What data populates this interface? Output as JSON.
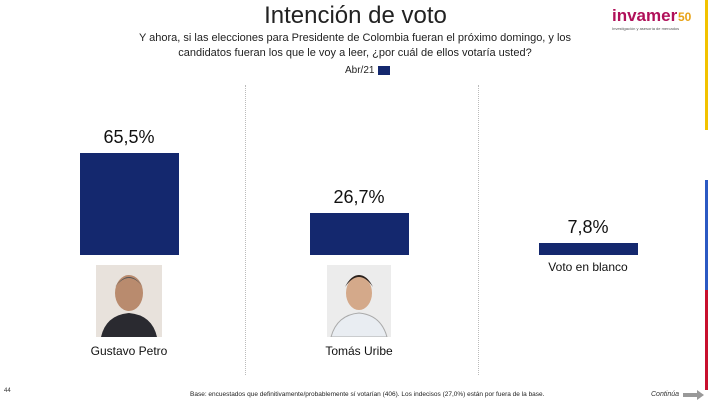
{
  "chart_data": {
    "type": "bar",
    "title": "Intención de voto",
    "subtitle": "Y ahora, si las elecciones para Presidente de Colombia fueran el próximo domingo, y los candidatos fueran los que le voy a leer, ¿por cuál de ellos votaría usted?",
    "categories": [
      "Gustavo Petro",
      "Tomás Uribe",
      "Voto en blanco"
    ],
    "series": [
      {
        "name": "Abr/21",
        "color": "#14286e",
        "values": [
          65.5,
          26.7,
          7.8
        ],
        "value_labels": [
          "65,5%",
          "26,7%",
          "7,8%"
        ]
      }
    ],
    "footnote": "Base: encuestados que definitivamente/probablemente sí votarían (406). Los indecisos (27,0%) están por fuera de la base.",
    "page_number": "44",
    "continue_label": "Continúa",
    "logo": {
      "brand": "invamer",
      "anniversary": "50",
      "tagline": "Investigación y asesoría de mercados"
    }
  }
}
